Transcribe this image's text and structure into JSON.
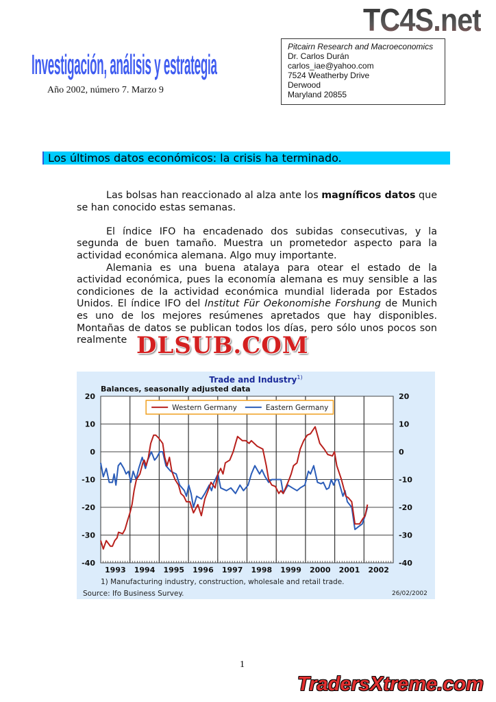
{
  "watermarks": {
    "top": "TC4S.net",
    "middle": "DLSUB.COM",
    "bottom": "TradersXtreme.com"
  },
  "header": {
    "masthead": "Investigación, análisis y estrategia",
    "issue": "Año 2002, número 7. Marzo 9",
    "address": {
      "org": "Pitcairn Research and Macroeconomics",
      "name": "Dr. Carlos Durán",
      "email": "carlos_iae@yahoo.com",
      "street": "7524 Weatherby Drive",
      "city": "Derwood",
      "state_zip": "Maryland 20855"
    }
  },
  "headline": "Los últimos datos económicos: la crisis ha terminado.",
  "body": {
    "p1_a": "Las bolsas han reaccionado al alza ante los ",
    "p1_bold": "magníficos datos",
    "p1_b": " que se han conocido estas semanas.",
    "p2": "El índice IFO ha encadenado dos subidas consecutivas, y la segunda de buen tamaño. Muestra un prometedor aspecto para la actividad económica alemana. Algo muy importante.",
    "p3_a": "Alemania es una buena atalaya para otear el estado de la actividad económica, pues la economía alemana es muy sensible a las condiciones de la actividad económica mundial liderada por Estados Unidos. El índice IFO del ",
    "p3_italic": "Institut Für Oekonomishe Forshung",
    "p3_b": " de Munich es uno de los mejores resúmenes apretados que hay disponibles. Montañas de datos se publican todos los días, pero sólo unos pocos son realmente"
  },
  "chart_data": {
    "type": "line",
    "title": "Trade and Industry",
    "title_footnote_mark": "1)",
    "subtitle": "Balances, seasonally adjusted data",
    "footnote": "1) Manufacturing industry, construction, wholesale and retail trade.",
    "source": "Source: Ifo Business Survey.",
    "date": "26/02/2002",
    "xlim": [
      1993,
      2003
    ],
    "ylim": [
      -40,
      20
    ],
    "x_tick_labels": [
      "1993",
      "1994",
      "1995",
      "1996",
      "1997",
      "1998",
      "1999",
      "2000",
      "2001",
      "2002"
    ],
    "y_tick_labels": [
      "20",
      "10",
      "0",
      "-10",
      "-20",
      "-30",
      "-40"
    ],
    "y_ticks": [
      20,
      10,
      0,
      -10,
      -20,
      -30,
      -40
    ],
    "grid": true,
    "legend_placement": "top-center",
    "colors": {
      "background": "#dcecfb",
      "legend_border": "#f0a020",
      "title": "#1a2a9a"
    },
    "series": [
      {
        "name": "Western Germany",
        "color": "#b8201c",
        "points": [
          [
            1993.0,
            -32
          ],
          [
            1993.09,
            -35
          ],
          [
            1993.19,
            -32
          ],
          [
            1993.33,
            -34
          ],
          [
            1993.4,
            -34
          ],
          [
            1993.48,
            -32
          ],
          [
            1993.56,
            -31
          ],
          [
            1993.61,
            -29
          ],
          [
            1993.75,
            -29.5
          ],
          [
            1993.83,
            -28
          ],
          [
            1993.91,
            -25
          ],
          [
            1994.0,
            -22
          ],
          [
            1994.07,
            -19
          ],
          [
            1994.14,
            -14
          ],
          [
            1994.22,
            -10
          ],
          [
            1994.34,
            -8
          ],
          [
            1994.44,
            -4
          ],
          [
            1994.49,
            -3
          ],
          [
            1994.55,
            -5
          ],
          [
            1994.63,
            -2
          ],
          [
            1994.71,
            3
          ],
          [
            1994.81,
            6
          ],
          [
            1994.88,
            6
          ],
          [
            1994.98,
            5
          ],
          [
            1995.12,
            3
          ],
          [
            1995.19,
            -2
          ],
          [
            1995.27,
            -5
          ],
          [
            1995.35,
            -2
          ],
          [
            1995.43,
            -7
          ],
          [
            1995.54,
            -10
          ],
          [
            1995.66,
            -12
          ],
          [
            1995.74,
            -15
          ],
          [
            1995.84,
            -16
          ],
          [
            1995.93,
            -18
          ],
          [
            1996.05,
            -18
          ],
          [
            1996.17,
            -22
          ],
          [
            1996.32,
            -19
          ],
          [
            1996.44,
            -23
          ],
          [
            1996.56,
            -17
          ],
          [
            1996.67,
            -14
          ],
          [
            1996.77,
            -11
          ],
          [
            1996.91,
            -13
          ],
          [
            1997.01,
            -8
          ],
          [
            1997.1,
            -6
          ],
          [
            1997.18,
            -8
          ],
          [
            1997.26,
            -4
          ],
          [
            1997.41,
            -3
          ],
          [
            1997.53,
            0
          ],
          [
            1997.61,
            3
          ],
          [
            1997.68,
            5.5
          ],
          [
            1997.84,
            4
          ],
          [
            1997.96,
            4
          ],
          [
            1998.07,
            3
          ],
          [
            1998.15,
            4
          ],
          [
            1998.35,
            2
          ],
          [
            1998.54,
            1
          ],
          [
            1998.66,
            -5
          ],
          [
            1998.74,
            -10
          ],
          [
            1998.85,
            -12
          ],
          [
            1998.97,
            -12.5
          ],
          [
            1999.09,
            -15
          ],
          [
            1999.16,
            -14
          ],
          [
            1999.24,
            -15
          ],
          [
            1999.32,
            -13
          ],
          [
            1999.44,
            -10
          ],
          [
            1999.51,
            -8
          ],
          [
            1999.59,
            -5
          ],
          [
            1999.71,
            -4
          ],
          [
            1999.82,
            1
          ],
          [
            1999.94,
            4
          ],
          [
            2000.06,
            6
          ],
          [
            2000.17,
            6.5
          ],
          [
            2000.33,
            9
          ],
          [
            2000.49,
            3
          ],
          [
            2000.64,
            1
          ],
          [
            2000.76,
            -1
          ],
          [
            2000.92,
            -1.5
          ],
          [
            2000.99,
            0
          ],
          [
            2001.07,
            -5
          ],
          [
            2001.23,
            -10
          ],
          [
            2001.38,
            -16
          ],
          [
            2001.46,
            -16.5
          ],
          [
            2001.58,
            -18
          ],
          [
            2001.69,
            -26
          ],
          [
            2001.85,
            -26
          ],
          [
            2001.97,
            -24
          ],
          [
            2002.04,
            -23
          ],
          [
            2002.12,
            -19
          ]
        ]
      },
      {
        "name": "Eastern Germany",
        "color": "#2a5cb8",
        "points": [
          [
            1993.0,
            -4
          ],
          [
            1993.09,
            -9
          ],
          [
            1993.19,
            -6
          ],
          [
            1993.29,
            -11
          ],
          [
            1993.4,
            -11
          ],
          [
            1993.46,
            -8
          ],
          [
            1993.52,
            -12
          ],
          [
            1993.6,
            -5
          ],
          [
            1993.68,
            -4
          ],
          [
            1993.79,
            -6
          ],
          [
            1993.87,
            -8
          ],
          [
            1993.95,
            -7
          ],
          [
            1994.03,
            -11
          ],
          [
            1994.11,
            -7
          ],
          [
            1994.21,
            -10
          ],
          [
            1994.3,
            -6
          ],
          [
            1994.42,
            -2
          ],
          [
            1994.53,
            -6
          ],
          [
            1994.61,
            -3
          ],
          [
            1994.73,
            0
          ],
          [
            1994.84,
            -3
          ],
          [
            1994.92,
            -2
          ],
          [
            1995.02,
            0
          ],
          [
            1995.12,
            0
          ],
          [
            1995.23,
            -5
          ],
          [
            1995.39,
            -7
          ],
          [
            1995.58,
            -8
          ],
          [
            1995.7,
            -12
          ],
          [
            1995.86,
            -14
          ],
          [
            1995.93,
            -16
          ],
          [
            1996.01,
            -12
          ],
          [
            1996.09,
            -15
          ],
          [
            1996.17,
            -20
          ],
          [
            1996.28,
            -16
          ],
          [
            1996.44,
            -17
          ],
          [
            1996.56,
            -15
          ],
          [
            1996.71,
            -12
          ],
          [
            1996.79,
            -14
          ],
          [
            1996.87,
            -11
          ],
          [
            1997.01,
            -8
          ],
          [
            1997.1,
            -13
          ],
          [
            1997.3,
            -14
          ],
          [
            1997.45,
            -13
          ],
          [
            1997.61,
            -15
          ],
          [
            1997.76,
            -12
          ],
          [
            1997.88,
            -14
          ],
          [
            1998.04,
            -12
          ],
          [
            1998.15,
            -8
          ],
          [
            1998.27,
            -5
          ],
          [
            1998.43,
            -8
          ],
          [
            1998.51,
            -6.5
          ],
          [
            1998.62,
            -9
          ],
          [
            1998.74,
            -11
          ],
          [
            1998.85,
            -10
          ],
          [
            1999.16,
            -10
          ],
          [
            1999.24,
            -15
          ],
          [
            1999.4,
            -12
          ],
          [
            1999.55,
            -13
          ],
          [
            1999.71,
            -14
          ],
          [
            1999.82,
            -13
          ],
          [
            1999.98,
            -12
          ],
          [
            2000.1,
            -7
          ],
          [
            2000.17,
            -8
          ],
          [
            2000.28,
            -5
          ],
          [
            2000.41,
            -11
          ],
          [
            2000.53,
            -11.5
          ],
          [
            2000.61,
            -11
          ],
          [
            2000.72,
            -13.5
          ],
          [
            2000.8,
            -13
          ],
          [
            2000.88,
            -10
          ],
          [
            2000.96,
            -12
          ],
          [
            2001.04,
            -10
          ],
          [
            2001.12,
            -10
          ],
          [
            2001.28,
            -16
          ],
          [
            2001.35,
            -14
          ],
          [
            2001.43,
            -18
          ],
          [
            2001.58,
            -20
          ],
          [
            2001.69,
            -28
          ],
          [
            2001.81,
            -27
          ],
          [
            2001.94,
            -26
          ],
          [
            2002.04,
            -23
          ],
          [
            2002.12,
            -20
          ]
        ]
      }
    ]
  },
  "page_number": "1"
}
